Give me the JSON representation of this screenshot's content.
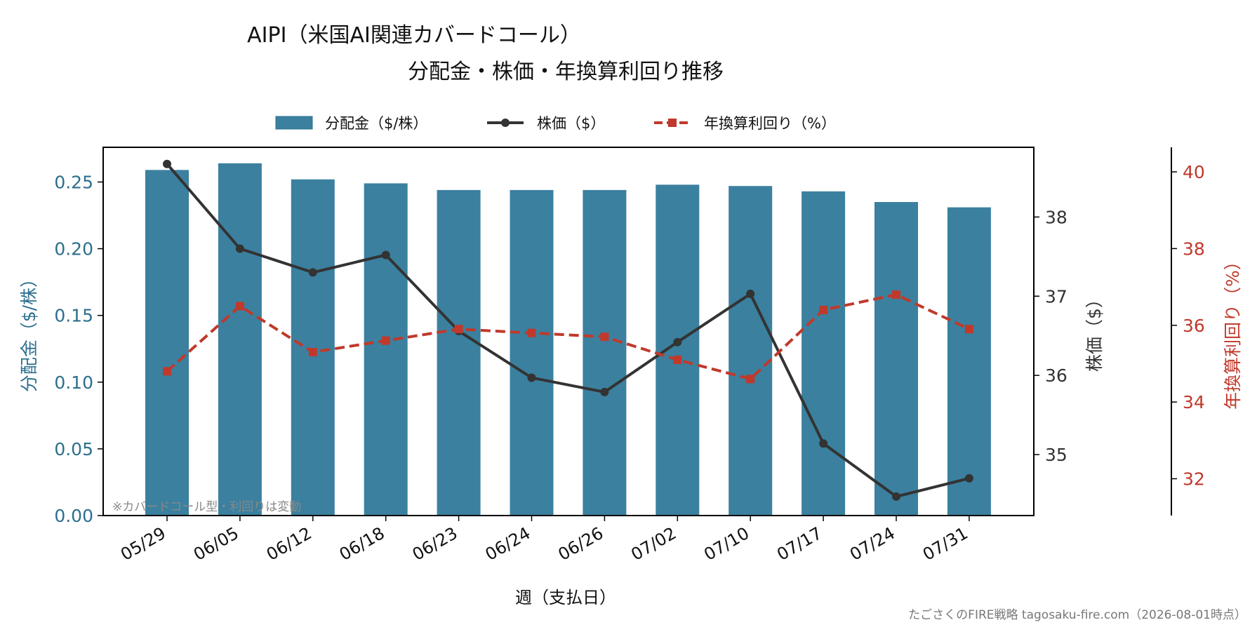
{
  "chart_data": {
    "type": "bar+line",
    "title_line1": "AIPI（米国AI関連カバードコール）",
    "title_line2": "分配金・株価・年換算利回り推移",
    "xlabel": "週（支払日）",
    "ylabel_left": "分配金（$/株）",
    "ylabel_mid": "株価（$）",
    "ylabel_right": "年換算利回り（%）",
    "categories": [
      "05/29",
      "06/05",
      "06/12",
      "06/18",
      "06/23",
      "06/24",
      "06/26",
      "07/02",
      "07/10",
      "07/17",
      "07/24",
      "07/31"
    ],
    "series": [
      {
        "name": "分配金（$/株）",
        "kind": "bar",
        "axis": "left",
        "values": [
          0.259,
          0.264,
          0.252,
          0.249,
          0.244,
          0.244,
          0.244,
          0.248,
          0.247,
          0.243,
          0.235,
          0.231
        ]
      },
      {
        "name": "株価（$）",
        "kind": "line",
        "axis": "mid",
        "values": [
          38.67,
          37.6,
          37.3,
          37.52,
          36.56,
          35.97,
          35.79,
          36.42,
          37.03,
          35.14,
          34.47,
          34.7
        ]
      },
      {
        "name": "年換算利回り（%）",
        "kind": "line-dashed",
        "axis": "right",
        "values": [
          34.8,
          36.5,
          35.3,
          35.6,
          35.9,
          35.8,
          35.7,
          35.1,
          34.6,
          36.4,
          36.8,
          35.9
        ]
      }
    ],
    "ylim_left": [
      0.0,
      0.276
    ],
    "yticks_left": [
      "0.00",
      "0.05",
      "0.10",
      "0.15",
      "0.20",
      "0.25"
    ],
    "ylim_mid": [
      34.23,
      38.88
    ],
    "yticks_mid": [
      "35",
      "36",
      "37",
      "38"
    ],
    "ylim_right": [
      31.04,
      40.64
    ],
    "yticks_right": [
      "32",
      "34",
      "36",
      "38",
      "40"
    ],
    "colors": {
      "bar": "#3b809f",
      "price": "#333333",
      "yield": "#c0392b",
      "left_axis": "#2d6f8e",
      "right_axis": "#c0392b"
    },
    "legend_placement": "top-center",
    "grid": false,
    "annotation": "※カバードコール型・利回りは変動",
    "footer": "たごさくのFIRE戦略 tagosaku-fire.com（2026-08-01時点）"
  }
}
